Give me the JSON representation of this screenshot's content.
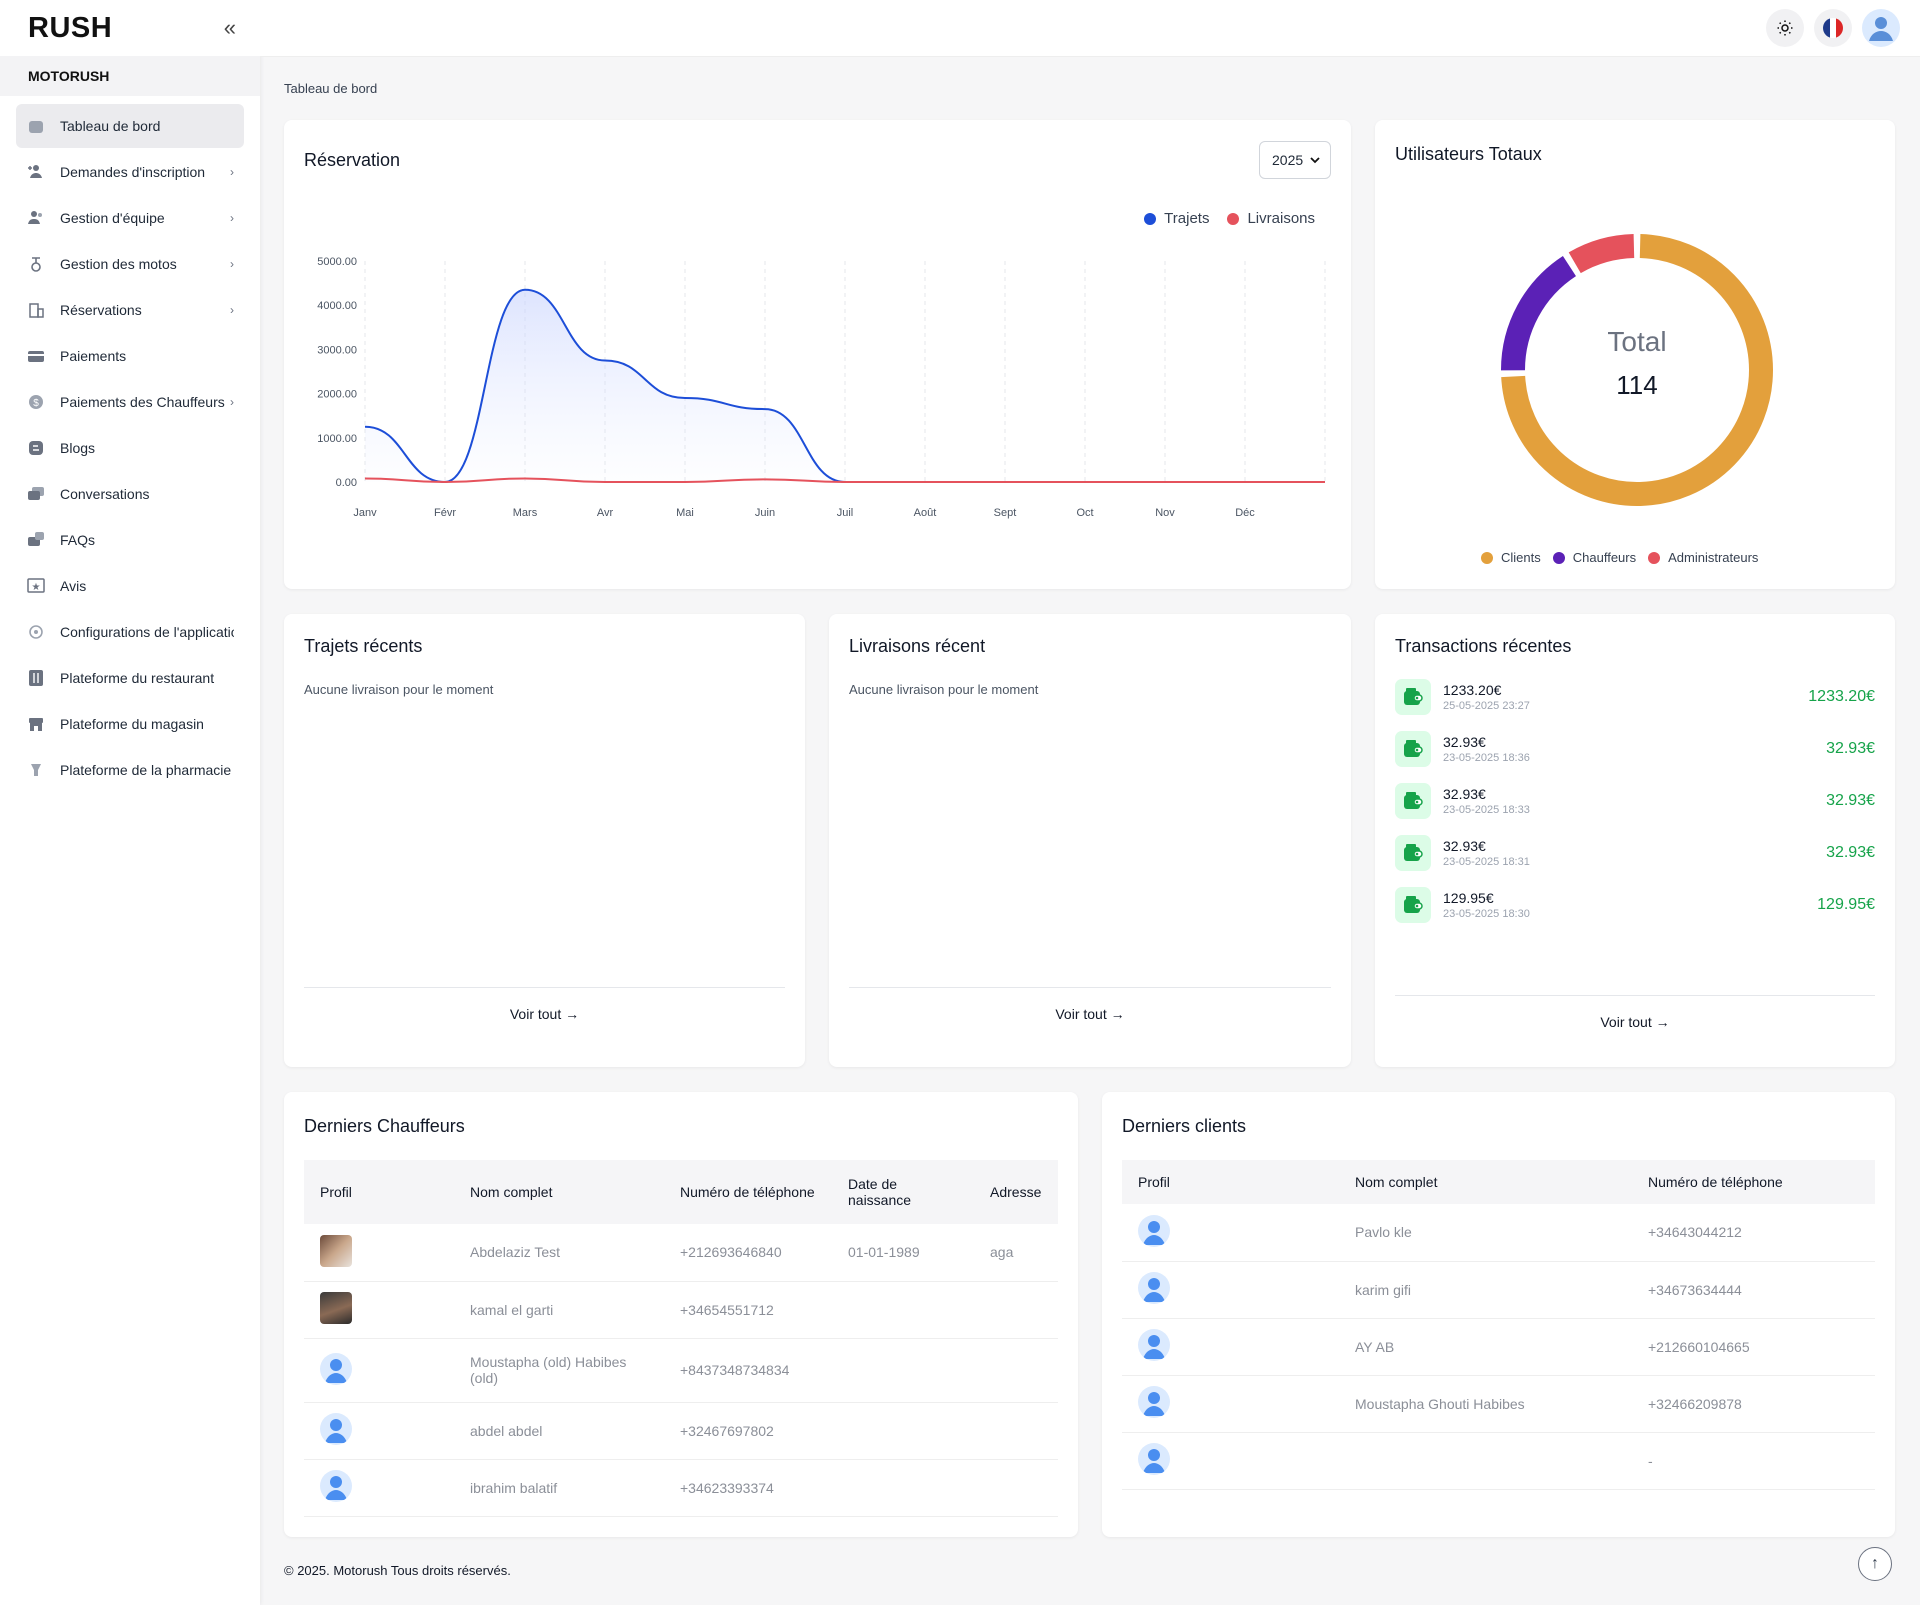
{
  "app": {
    "logo": "RUSH",
    "brand": "MOTORUSH"
  },
  "sidebar": {
    "items": [
      {
        "label": "Tableau de bord",
        "has_chevron": false
      },
      {
        "label": "Demandes d'inscription",
        "has_chevron": true
      },
      {
        "label": "Gestion d'équipe",
        "has_chevron": true
      },
      {
        "label": "Gestion des motos",
        "has_chevron": true
      },
      {
        "label": "Réservations",
        "has_chevron": true
      },
      {
        "label": "Paiements",
        "has_chevron": false
      },
      {
        "label": "Paiements des Chauffeurs",
        "has_chevron": true
      },
      {
        "label": "Blogs",
        "has_chevron": false
      },
      {
        "label": "Conversations",
        "has_chevron": false
      },
      {
        "label": "FAQs",
        "has_chevron": false
      },
      {
        "label": "Avis",
        "has_chevron": false
      },
      {
        "label": "Configurations de l'applicatio",
        "has_chevron": false
      },
      {
        "label": "Plateforme du restaurant",
        "has_chevron": false
      },
      {
        "label": "Plateforme du magasin",
        "has_chevron": false
      },
      {
        "label": "Plateforme de la pharmacie",
        "has_chevron": false
      }
    ]
  },
  "breadcrumb": "Tableau de bord",
  "reservation": {
    "title": "Réservation",
    "year": "2025",
    "legend": [
      "Trajets",
      "Livraisons"
    ]
  },
  "users_card": {
    "title": "Utilisateurs Totaux",
    "center_label": "Total",
    "center_value": "114",
    "legend": [
      "Clients",
      "Chauffeurs",
      "Administrateurs"
    ]
  },
  "recent_trips": {
    "title": "Trajets récents",
    "empty": "Aucune livraison pour le moment",
    "link": "Voir tout →"
  },
  "recent_deliveries": {
    "title": "Livraisons récent",
    "empty": "Aucune livraison pour le moment",
    "link": "Voir tout →"
  },
  "transactions": {
    "title": "Transactions récentes",
    "link": "Voir tout →",
    "items": [
      {
        "amount": "1233.20€",
        "date": "25-05-2025 23:27",
        "right": "1233.20€"
      },
      {
        "amount": "32.93€",
        "date": "23-05-2025 18:36",
        "right": "32.93€"
      },
      {
        "amount": "32.93€",
        "date": "23-05-2025 18:33",
        "right": "32.93€"
      },
      {
        "amount": "32.93€",
        "date": "23-05-2025 18:31",
        "right": "32.93€"
      },
      {
        "amount": "129.95€",
        "date": "23-05-2025 18:30",
        "right": "129.95€"
      }
    ]
  },
  "drivers": {
    "title": "Derniers Chauffeurs",
    "headers": [
      "Profil",
      "Nom complet",
      "Numéro de téléphone",
      "Date de naissance",
      "Adresse"
    ],
    "rows": [
      {
        "avatar": "photo-1",
        "name": "Abdelaziz Test",
        "phone": "+212693646840",
        "dob": "01-01-1989",
        "address": "aga"
      },
      {
        "avatar": "photo-2",
        "name": "kamal el garti",
        "phone": "+34654551712",
        "dob": "",
        "address": ""
      },
      {
        "avatar": "default",
        "name": "Moustapha (old) Habibes (old)",
        "phone": "+8437348734834",
        "dob": "",
        "address": ""
      },
      {
        "avatar": "default",
        "name": "abdel abdel",
        "phone": "+32467697802",
        "dob": "",
        "address": ""
      },
      {
        "avatar": "default",
        "name": "ibrahim balatif",
        "phone": "+34623393374",
        "dob": "",
        "address": ""
      }
    ]
  },
  "clients": {
    "title": "Derniers clients",
    "headers": [
      "Profil",
      "Nom complet",
      "Numéro de téléphone"
    ],
    "rows": [
      {
        "name": "Pavlo kle",
        "phone": "+34643044212"
      },
      {
        "name": "karim gifi",
        "phone": "+34673634444"
      },
      {
        "name": "AY AB",
        "phone": "+212660104665"
      },
      {
        "name": "Moustapha Ghouti Habibes",
        "phone": "+32466209878"
      },
      {
        "name": "",
        "phone": "-"
      }
    ]
  },
  "footer": "© 2025. Motorush Tous droits réservés.",
  "colors": {
    "trajets": "#1d4ed8",
    "livraisons": "#e5525c",
    "clients": "#e3a03c",
    "chauffeurs": "#5b21b6",
    "administrateurs": "#e5525c",
    "positive": "#16a34a"
  },
  "chart_data": [
    {
      "type": "area",
      "categories": [
        "Janv",
        "Févr",
        "Mars",
        "Avr",
        "Mai",
        "Juin",
        "Juil",
        "Août",
        "Sept",
        "Oct",
        "Nov",
        "Déc"
      ],
      "ytick_labels": [
        "0.00",
        "1000.00",
        "2000.00",
        "3000.00",
        "4000.00",
        "5000.00"
      ],
      "ylim": [
        0,
        5000
      ],
      "grid": "vertical-dashed",
      "legend_position": "top-right",
      "series": [
        {
          "name": "Trajets",
          "values": [
            1250,
            0,
            4350,
            2750,
            1900,
            1650,
            0,
            0,
            0,
            0,
            0,
            0
          ]
        },
        {
          "name": "Livraisons",
          "values": [
            80,
            0,
            80,
            0,
            0,
            60,
            0,
            0,
            0,
            0,
            0,
            0
          ]
        }
      ]
    },
    {
      "type": "pie",
      "style": "donut",
      "labels": [
        "Clients",
        "Chauffeurs",
        "Administrateurs"
      ],
      "values": [
        85,
        19,
        10
      ],
      "total": 114
    }
  ]
}
